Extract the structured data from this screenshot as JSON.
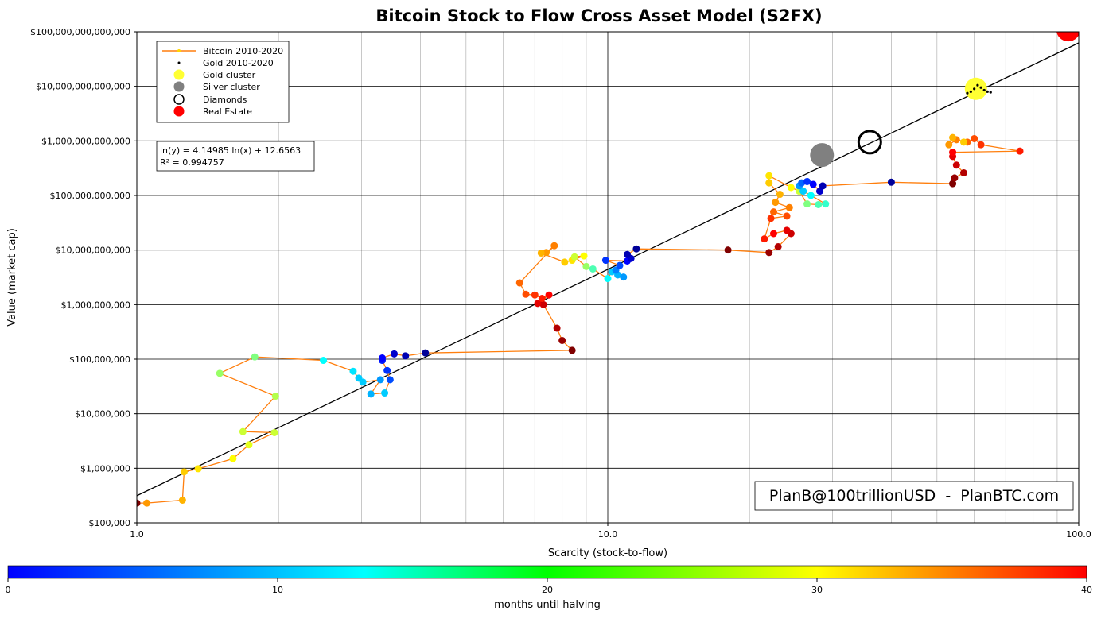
{
  "chart_data": {
    "type": "scatter",
    "title": "Bitcoin Stock to Flow Cross Asset Model (S2FX)",
    "xlabel": "Scarcity (stock-to-flow)",
    "ylabel": "Value (market cap)",
    "xscale": "log",
    "yscale": "log",
    "xlim": [
      1.0,
      100.0
    ],
    "ylim": [
      100000,
      100000000000000
    ],
    "x_ticks": [
      {
        "value": 1.0,
        "label": "1.0"
      },
      {
        "value": 10.0,
        "label": "10.0"
      },
      {
        "value": 100.0,
        "label": "100.0"
      }
    ],
    "y_ticks": [
      {
        "value": 100000,
        "label": "$100,000"
      },
      {
        "value": 1000000,
        "label": "$1,000,000"
      },
      {
        "value": 10000000,
        "label": "$10,000,000"
      },
      {
        "value": 100000000,
        "label": "$100,000,000"
      },
      {
        "value": 1000000000,
        "label": "$1,000,000,000"
      },
      {
        "value": 10000000000,
        "label": "$10,000,000,000"
      },
      {
        "value": 100000000000,
        "label": "$100,000,000,000"
      },
      {
        "value": 1000000000000,
        "label": "$1,000,000,000,000"
      },
      {
        "value": 10000000000000,
        "label": "$10,000,000,000,000"
      },
      {
        "value": 100000000000000,
        "label": "$100,000,000,000,000"
      }
    ],
    "grid": true,
    "legend_position": "top-left",
    "legend": [
      {
        "label": "Bitcoin 2010-2020",
        "marker": "line",
        "color": "#ff7f0e"
      },
      {
        "label": "Gold 2010-2020",
        "marker": "dot",
        "color": "#000000"
      },
      {
        "label": "Gold cluster",
        "marker": "circle",
        "color": "#ffff33"
      },
      {
        "label": "Silver cluster",
        "marker": "circle",
        "color": "#808080"
      },
      {
        "label": "Diamonds",
        "marker": "open-circle",
        "color": "#000000"
      },
      {
        "label": "Real Estate",
        "marker": "circle",
        "color": "#ff0000"
      }
    ],
    "regression": {
      "equation": "ln(y) = 4.14985 ln(x) + 12.6563",
      "r2": "R² = 0.994757",
      "slope": 4.14985,
      "intercept": 12.6563,
      "color": "#000000"
    },
    "watermark": "PlanB@100trillionUSD  -  PlanBTC.com",
    "bitcoin_line_color": "#ff7f0e",
    "bitcoin_series": {
      "name": "Bitcoin 2010-2020",
      "points": [
        {
          "x": 1.0,
          "y": 230000,
          "m": 40
        },
        {
          "x": 1.05,
          "y": 230000,
          "m": 29
        },
        {
          "x": 1.25,
          "y": 260000,
          "m": 28
        },
        {
          "x": 1.26,
          "y": 860000,
          "m": 27
        },
        {
          "x": 1.35,
          "y": 980000,
          "m": 26
        },
        {
          "x": 1.6,
          "y": 1500000,
          "m": 25
        },
        {
          "x": 1.73,
          "y": 2700000,
          "m": 24
        },
        {
          "x": 1.96,
          "y": 4500000,
          "m": 23
        },
        {
          "x": 1.68,
          "y": 4700000,
          "m": 23
        },
        {
          "x": 1.97,
          "y": 21000000,
          "m": 22
        },
        {
          "x": 1.5,
          "y": 55000000,
          "m": 21
        },
        {
          "x": 1.78,
          "y": 110000000,
          "m": 20
        },
        {
          "x": 2.49,
          "y": 95000000,
          "m": 15
        },
        {
          "x": 2.88,
          "y": 60000000,
          "m": 14
        },
        {
          "x": 2.96,
          "y": 45000000,
          "m": 13
        },
        {
          "x": 3.02,
          "y": 38000000,
          "m": 13
        },
        {
          "x": 3.29,
          "y": 42000000,
          "m": 11
        },
        {
          "x": 3.14,
          "y": 23000000,
          "m": 12
        },
        {
          "x": 3.36,
          "y": 24000000,
          "m": 13
        },
        {
          "x": 3.45,
          "y": 42000000,
          "m": 8
        },
        {
          "x": 3.4,
          "y": 62000000,
          "m": 7
        },
        {
          "x": 3.32,
          "y": 95000000,
          "m": 6
        },
        {
          "x": 3.32,
          "y": 105000000,
          "m": 5
        },
        {
          "x": 3.52,
          "y": 125000000,
          "m": 3
        },
        {
          "x": 3.72,
          "y": 115000000,
          "m": 2
        },
        {
          "x": 4.1,
          "y": 130000000,
          "m": 1
        },
        {
          "x": 8.4,
          "y": 145000000,
          "m": 40
        },
        {
          "x": 8.0,
          "y": 220000000,
          "m": 39
        },
        {
          "x": 7.8,
          "y": 370000000,
          "m": 38
        },
        {
          "x": 7.3,
          "y": 1000000000,
          "m": 37
        },
        {
          "x": 7.1,
          "y": 1050000000,
          "m": 36
        },
        {
          "x": 7.5,
          "y": 1500000000,
          "m": 35
        },
        {
          "x": 7.25,
          "y": 1300000000,
          "m": 34
        },
        {
          "x": 7.0,
          "y": 1500000000,
          "m": 33
        },
        {
          "x": 6.7,
          "y": 1550000000,
          "m": 32
        },
        {
          "x": 6.5,
          "y": 2500000000,
          "m": 31
        },
        {
          "x": 7.7,
          "y": 12000000000,
          "m": 30
        },
        {
          "x": 7.4,
          "y": 9000000000,
          "m": 29
        },
        {
          "x": 7.22,
          "y": 8800000000,
          "m": 28
        },
        {
          "x": 8.1,
          "y": 6000000000,
          "m": 27
        },
        {
          "x": 8.4,
          "y": 6500000000,
          "m": 26
        },
        {
          "x": 8.9,
          "y": 7800000000,
          "m": 25
        },
        {
          "x": 8.5,
          "y": 7500000000,
          "m": 23
        },
        {
          "x": 9.0,
          "y": 5000000000,
          "m": 21
        },
        {
          "x": 9.3,
          "y": 4500000000,
          "m": 18
        },
        {
          "x": 10.0,
          "y": 3000000000,
          "m": 15
        },
        {
          "x": 10.2,
          "y": 4000000000,
          "m": 13
        },
        {
          "x": 10.5,
          "y": 3500000000,
          "m": 12
        },
        {
          "x": 10.8,
          "y": 3200000000,
          "m": 11
        },
        {
          "x": 10.4,
          "y": 4300000000,
          "m": 10
        },
        {
          "x": 10.6,
          "y": 5200000000,
          "m": 8
        },
        {
          "x": 9.9,
          "y": 6500000000,
          "m": 7
        },
        {
          "x": 11.0,
          "y": 6300000000,
          "m": 5
        },
        {
          "x": 11.2,
          "y": 7000000000,
          "m": 3
        },
        {
          "x": 11.0,
          "y": 8300000000,
          "m": 2
        },
        {
          "x": 11.5,
          "y": 10500000000,
          "m": 1
        },
        {
          "x": 18.0,
          "y": 10000000000,
          "m": 40
        },
        {
          "x": 22.0,
          "y": 9000000000,
          "m": 39
        },
        {
          "x": 23.0,
          "y": 11500000000,
          "m": 38
        },
        {
          "x": 24.5,
          "y": 20000000000,
          "m": 37
        },
        {
          "x": 24.0,
          "y": 23000000000,
          "m": 36
        },
        {
          "x": 22.5,
          "y": 20000000000,
          "m": 35
        },
        {
          "x": 21.5,
          "y": 16000000000,
          "m": 34
        },
        {
          "x": 22.2,
          "y": 38000000000,
          "m": 33
        },
        {
          "x": 24.0,
          "y": 42000000000,
          "m": 32
        },
        {
          "x": 22.5,
          "y": 50000000000,
          "m": 31
        },
        {
          "x": 24.3,
          "y": 60000000000,
          "m": 30
        },
        {
          "x": 22.7,
          "y": 75000000000,
          "m": 29
        },
        {
          "x": 23.2,
          "y": 105000000000,
          "m": 28
        },
        {
          "x": 22.0,
          "y": 170000000000,
          "m": 27
        },
        {
          "x": 22.0,
          "y": 230000000000,
          "m": 26
        },
        {
          "x": 24.5,
          "y": 140000000000,
          "m": 25
        },
        {
          "x": 25.5,
          "y": 120000000000,
          "m": 23
        },
        {
          "x": 26.5,
          "y": 70000000000,
          "m": 20
        },
        {
          "x": 28.0,
          "y": 68000000000,
          "m": 18
        },
        {
          "x": 29.0,
          "y": 70000000000,
          "m": 17
        },
        {
          "x": 27.0,
          "y": 100000000000,
          "m": 15
        },
        {
          "x": 26.0,
          "y": 120000000000,
          "m": 13
        },
        {
          "x": 25.5,
          "y": 150000000000,
          "m": 11
        },
        {
          "x": 25.8,
          "y": 170000000000,
          "m": 9
        },
        {
          "x": 26.5,
          "y": 180000000000,
          "m": 7
        },
        {
          "x": 27.3,
          "y": 160000000000,
          "m": 5
        },
        {
          "x": 28.2,
          "y": 120000000000,
          "m": 3
        },
        {
          "x": 28.6,
          "y": 150000000000,
          "m": 2
        },
        {
          "x": 40.0,
          "y": 175000000000,
          "m": 1
        },
        {
          "x": 54.0,
          "y": 165000000000,
          "m": 40
        },
        {
          "x": 54.5,
          "y": 210000000000,
          "m": 39
        },
        {
          "x": 57.0,
          "y": 260000000000,
          "m": 38
        },
        {
          "x": 55.0,
          "y": 360000000000,
          "m": 37
        },
        {
          "x": 54.0,
          "y": 520000000000,
          "m": 36
        },
        {
          "x": 54.0,
          "y": 620000000000,
          "m": 35
        },
        {
          "x": 75.0,
          "y": 650000000000,
          "m": 34
        },
        {
          "x": 62.0,
          "y": 850000000000,
          "m": 33
        },
        {
          "x": 60.0,
          "y": 1100000000000,
          "m": 32
        },
        {
          "x": 58.0,
          "y": 950000000000,
          "m": 31
        },
        {
          "x": 55.0,
          "y": 1050000000000,
          "m": 30
        },
        {
          "x": 53.0,
          "y": 850000000000,
          "m": 29
        },
        {
          "x": 54.0,
          "y": 1150000000000,
          "m": 28
        },
        {
          "x": 57.0,
          "y": 950000000000,
          "m": 27
        }
      ]
    },
    "gold_series": {
      "name": "Gold 2010-2020",
      "points": [
        {
          "x": 58,
          "y": 7500000000000
        },
        {
          "x": 59,
          "y": 8000000000000
        },
        {
          "x": 60,
          "y": 9000000000000
        },
        {
          "x": 61,
          "y": 10500000000000
        },
        {
          "x": 62,
          "y": 9500000000000
        },
        {
          "x": 63,
          "y": 8500000000000
        },
        {
          "x": 64,
          "y": 8000000000000
        },
        {
          "x": 65,
          "y": 7800000000000
        }
      ]
    },
    "clusters": [
      {
        "label": "Gold cluster",
        "x": 60.5,
        "y": 9000000000000,
        "color": "#ffff33"
      },
      {
        "label": "Silver cluster",
        "x": 28.5,
        "y": 550000000000,
        "color": "#808080"
      },
      {
        "label": "Diamonds",
        "x": 36.0,
        "y": 950000000000,
        "color": "none"
      },
      {
        "label": "Real Estate",
        "x": 95.0,
        "y": 110000000000000,
        "color": "#ff0000"
      }
    ],
    "colorbar": {
      "label": "months until halving",
      "min": 0,
      "max": 40,
      "ticks": [
        {
          "value": 0,
          "label": "0"
        },
        {
          "value": 10,
          "label": "10"
        },
        {
          "value": 20,
          "label": "20"
        },
        {
          "value": 30,
          "label": "30"
        },
        {
          "value": 40,
          "label": "40"
        }
      ],
      "colormap": "jet"
    }
  }
}
